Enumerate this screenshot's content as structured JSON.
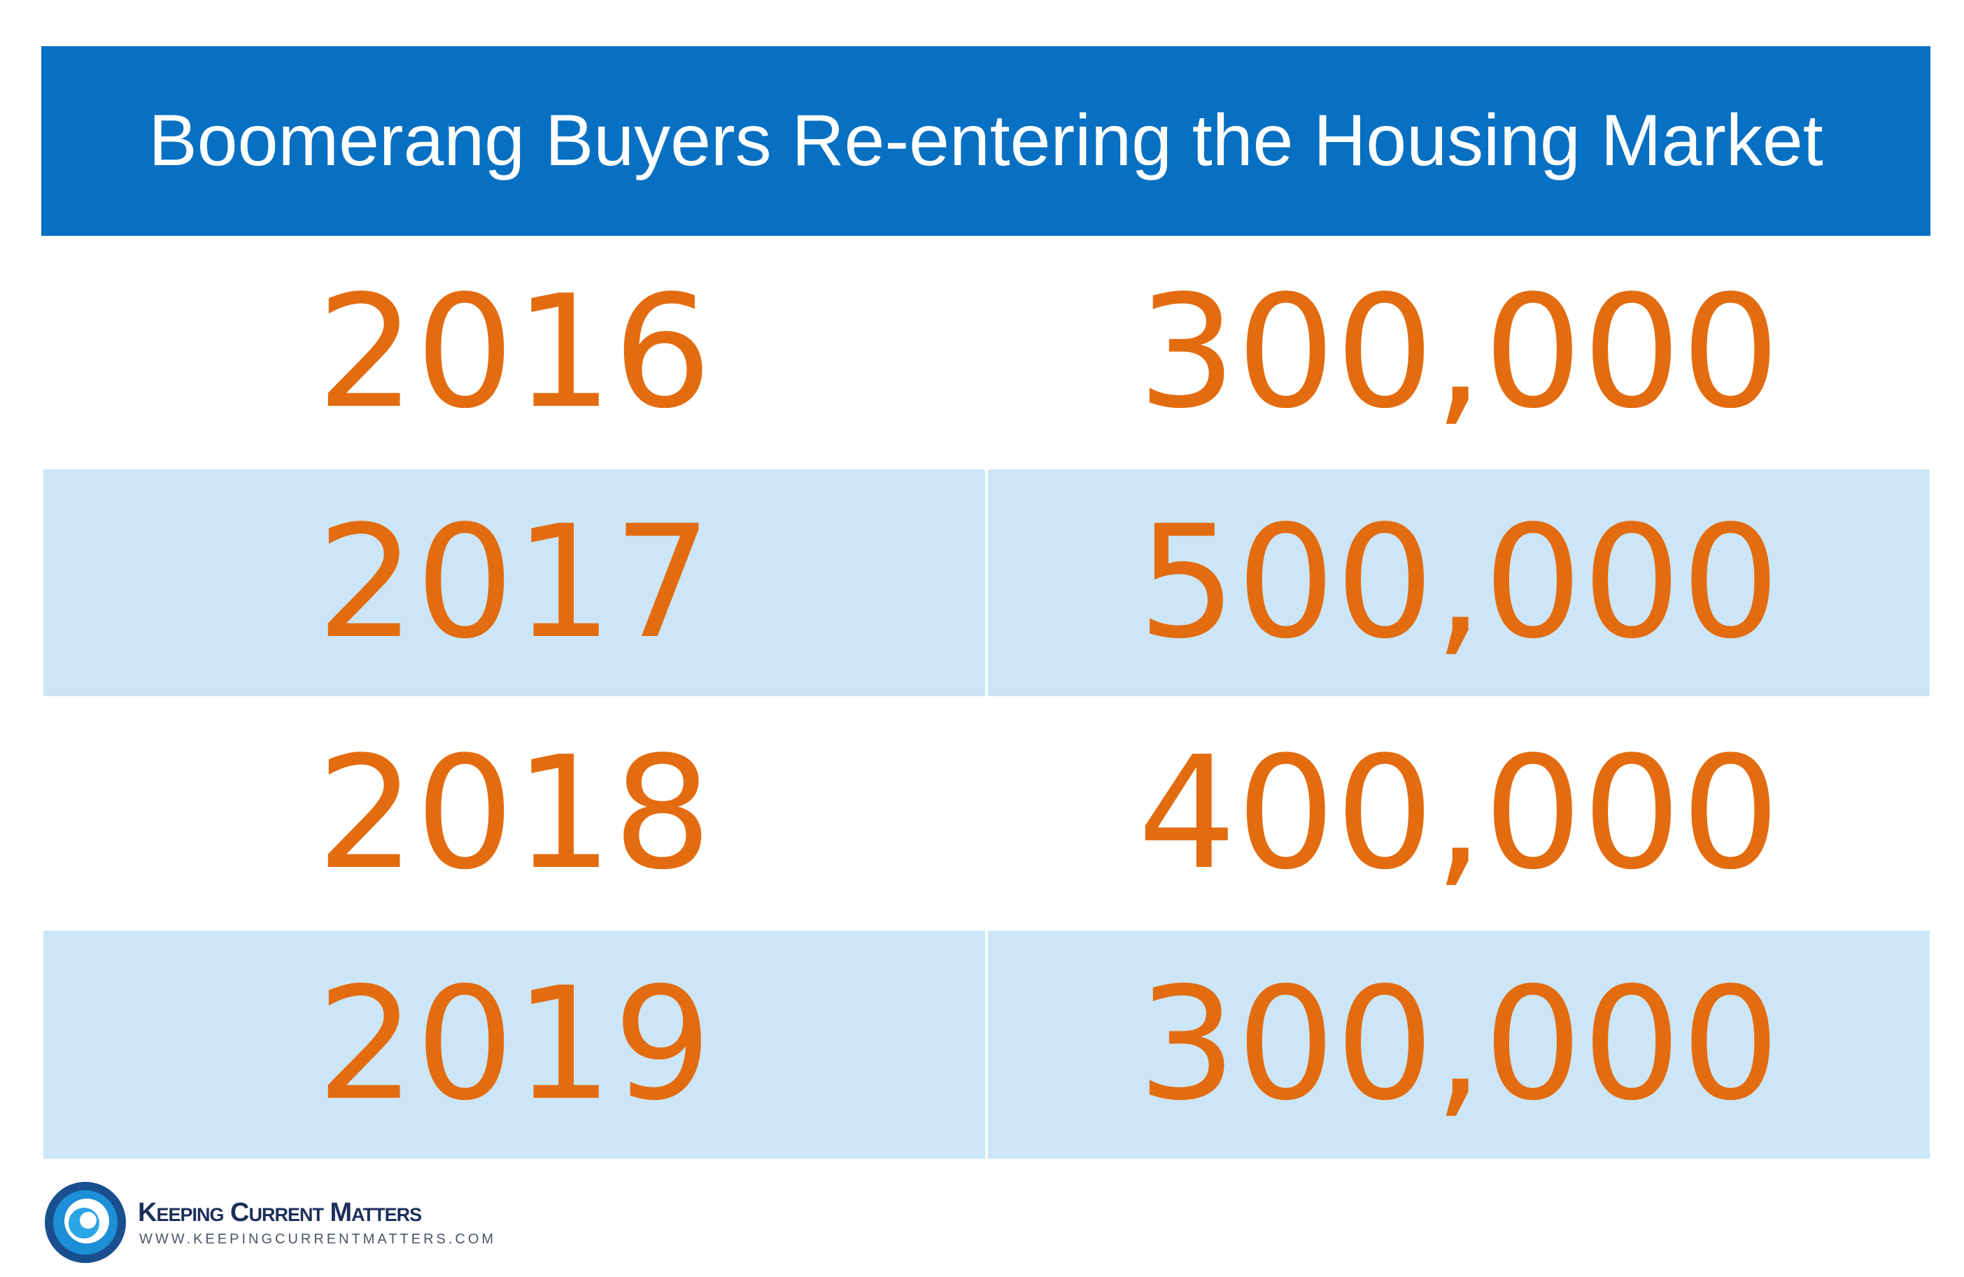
{
  "header": {
    "title": "Boomerang Buyers Re-entering the Housing Market"
  },
  "table": {
    "rows": [
      [
        "2016",
        "300,000"
      ],
      [
        "2017",
        "500,000"
      ],
      [
        "2018",
        "400,000"
      ],
      [
        "2019",
        "300,000"
      ]
    ]
  },
  "logo": {
    "name": "Keeping Current Matters",
    "url": "www.keepingcurrentmatters.com"
  }
}
